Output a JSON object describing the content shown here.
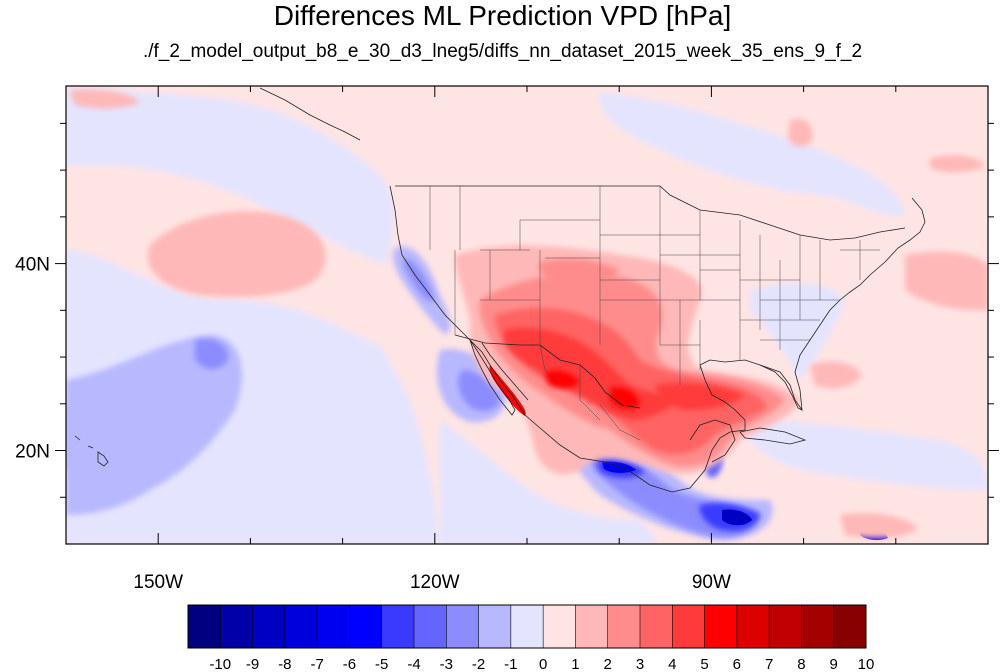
{
  "chart_data": {
    "type": "heatmap",
    "title": "Differences ML Prediction VPD [hPa]",
    "subtitle": "./f_2_model_output_b8_e_30_d3_lneg5/diffs_nn_dataset_2015_week_35_ens_9_f_2",
    "map": {
      "projection": "cylindrical equidistant",
      "lon_range": [
        -160,
        -60
      ],
      "lat_range": [
        10,
        59
      ],
      "x_ticks": [
        {
          "value": -150,
          "label": "150W"
        },
        {
          "value": -120,
          "label": "120W"
        },
        {
          "value": -90,
          "label": "90W"
        }
      ],
      "y_ticks": [
        {
          "value": 20,
          "label": "20N"
        },
        {
          "value": 40,
          "label": "40N"
        }
      ],
      "boundaries": "US states, Mexico, Canada coastline"
    },
    "colorbar": {
      "position": "bottom",
      "labels": [
        "-10",
        "-9",
        "-8",
        "-7",
        "-6",
        "-5",
        "-4",
        "-3",
        "-2",
        "-1",
        "0",
        "1",
        "2",
        "3",
        "4",
        "5",
        "6",
        "7",
        "8",
        "9",
        "10"
      ],
      "colors": [
        "#000080",
        "#0000a8",
        "#0000c4",
        "#0000dc",
        "#0000f0",
        "#0000ff",
        "#3a3aff",
        "#6464ff",
        "#8c8cff",
        "#b8b8ff",
        "#e4e4ff",
        "#ffe4e4",
        "#ffb8b8",
        "#ff8c8c",
        "#ff6464",
        "#ff3a3a",
        "#ff0000",
        "#dc0000",
        "#c00000",
        "#a40000",
        "#880000"
      ]
    },
    "features": {
      "background_class": "0 to 1 (light pink) over most ocean and land",
      "positive_max_region": "Southwest US / northern Mexico / Texas / Gulf of Mexico, up to 6 to 7",
      "negative_regions": "Pacific southwest of Hawaii (-1 to -3), Baja/California coast (-2 to -4), Gulf of Tehuantepec and Central America (-4 to -7)"
    }
  }
}
